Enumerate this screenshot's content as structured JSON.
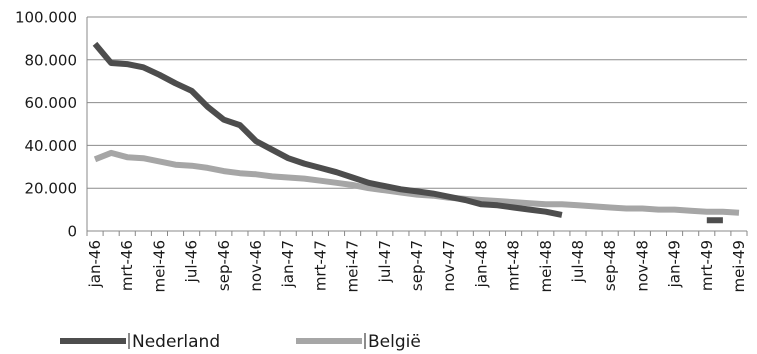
{
  "chart_data": {
    "type": "line",
    "title": "",
    "xlabel": "",
    "ylabel": "",
    "ylim": [
      0,
      100000
    ],
    "y_ticks": [
      0,
      20000,
      40000,
      60000,
      80000,
      100000
    ],
    "y_tick_labels": [
      "0",
      "20.000",
      "40.000",
      "60.000",
      "80.000",
      "100.000"
    ],
    "grid": "horizontal",
    "legend_position": "bottom-left",
    "x": [
      "jan-46",
      "feb-46",
      "mrt-46",
      "apr-46",
      "mei-46",
      "jun-46",
      "jul-46",
      "aug-46",
      "sep-46",
      "okt-46",
      "nov-46",
      "dec-46",
      "jan-47",
      "feb-47",
      "mrt-47",
      "apr-47",
      "mei-47",
      "jun-47",
      "jul-47",
      "aug-47",
      "sep-47",
      "okt-47",
      "nov-47",
      "dec-47",
      "jan-48",
      "feb-48",
      "mrt-48",
      "apr-48",
      "mei-48",
      "jun-48",
      "jul-48",
      "aug-48",
      "sep-48",
      "okt-48",
      "nov-48",
      "dec-48",
      "jan-49",
      "feb-49",
      "mrt-49",
      "apr-49",
      "mei-49"
    ],
    "x_tick_labels": [
      "jan-46",
      "mrt-46",
      "mei-46",
      "jul-46",
      "sep-46",
      "nov-46",
      "jan-47",
      "mrt-47",
      "mei-47",
      "jul-47",
      "sep-47",
      "nov-47",
      "jan-48",
      "mrt-48",
      "mei-48",
      "jul-48",
      "sep-48",
      "nov-48",
      "jan-49",
      "mrt-49",
      "mei-49"
    ],
    "series": [
      {
        "name": "Nederland",
        "color": "#4d4d4d",
        "values": [
          87500,
          78500,
          78000,
          76500,
          73000,
          69000,
          65500,
          58000,
          52000,
          49500,
          42000,
          38000,
          34000,
          31500,
          29500,
          27500,
          25000,
          22500,
          21000,
          19500,
          18500,
          17500,
          16000,
          14500,
          12500,
          12000,
          11000,
          10000,
          9000,
          7500,
          null,
          null,
          null,
          null,
          null,
          null,
          null,
          null,
          5000,
          5000,
          null
        ]
      },
      {
        "name": "België",
        "color": "#a6a6a6",
        "values": [
          33500,
          36500,
          34500,
          34000,
          32500,
          31000,
          30500,
          29500,
          28000,
          27000,
          26500,
          25500,
          25000,
          24500,
          23500,
          22500,
          21500,
          20000,
          19000,
          18000,
          17000,
          16500,
          15500,
          15000,
          14500,
          14000,
          13500,
          13000,
          12500,
          12500,
          12000,
          11500,
          11000,
          10500,
          10500,
          10000,
          10000,
          9500,
          9000,
          9000,
          8500
        ]
      }
    ]
  }
}
